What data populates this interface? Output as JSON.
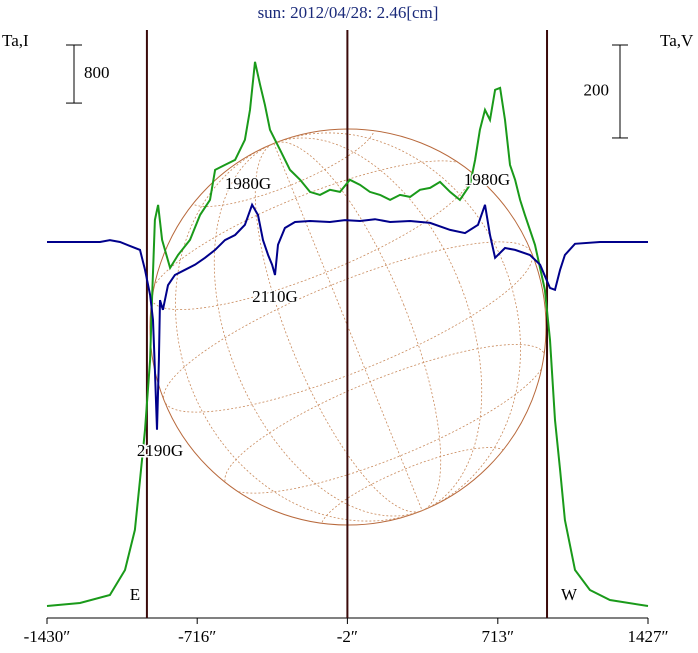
{
  "chart_data": {
    "type": "line",
    "title": "sun: 2012/04/28: 2.46[cm]",
    "ylabel": "Ta,I",
    "y2label": "Ta,V",
    "xlim": [
      -1430,
      1427
    ],
    "xticks": [
      {
        "value": -1430,
        "label": "-1430″"
      },
      {
        "value": -716,
        "label": "-716″"
      },
      {
        "value": -2,
        "label": "-2″"
      },
      {
        "value": 713,
        "label": "713″"
      },
      {
        "value": 1427,
        "label": "1427″"
      }
    ],
    "ylim": [
      0,
      8100
    ],
    "y2lim": [
      -809,
      456
    ],
    "y_scale_bar": 800,
    "y2_scale_bar": 200,
    "vlines": [
      -955,
      -2,
      947
    ],
    "limb_labels": [
      "E",
      "W"
    ],
    "annotations": [
      "1980G",
      "1980G",
      "2110G",
      "2190G"
    ],
    "series": [
      {
        "name": "I",
        "color": "#1a9a1a",
        "x": [
          -1430,
          -1273,
          -1131,
          -1059,
          -1012,
          -988,
          -964,
          -940,
          -931,
          -917,
          -902,
          -883,
          -845,
          -807,
          -750,
          -702,
          -655,
          -631,
          -584,
          -536,
          -489,
          -465,
          -441,
          -417,
          -394,
          -370,
          -322,
          -275,
          -227,
          -180,
          -132,
          -85,
          -37,
          10,
          58,
          105,
          153,
          201,
          248,
          296,
          343,
          391,
          438,
          486,
          533,
          581,
          605,
          628,
          652,
          676,
          700,
          724,
          747,
          771,
          795,
          819,
          842,
          890,
          937,
          961,
          985,
          1009,
          1032,
          1080,
          1151,
          1246,
          1427
        ],
        "values": [
          165,
          207,
          317,
          661,
          1213,
          1902,
          2591,
          3555,
          4382,
          5484,
          5691,
          5209,
          4823,
          5002,
          5209,
          5553,
          5760,
          6173,
          6242,
          6311,
          6587,
          7000,
          7662,
          7345,
          7069,
          6725,
          6449,
          6173,
          6036,
          5870,
          5829,
          5898,
          5870,
          6036,
          5967,
          5870,
          5829,
          5760,
          5829,
          5801,
          5898,
          5925,
          6008,
          5870,
          5760,
          5967,
          6311,
          6725,
          7000,
          6862,
          7276,
          7303,
          6862,
          6242,
          6036,
          5760,
          5553,
          5140,
          4520,
          3831,
          2728,
          2039,
          1350,
          661,
          386,
          248,
          165
        ]
      },
      {
        "name": "V",
        "color": "#00008b",
        "axis": "y2",
        "x": [
          -1430,
          -1178,
          -1131,
          -1083,
          -988,
          -964,
          -940,
          -926,
          -917,
          -907,
          -898,
          -893,
          -879,
          -855,
          -822,
          -774,
          -726,
          -679,
          -631,
          -584,
          -536,
          -489,
          -455,
          -427,
          -403,
          -379,
          -360,
          -346,
          -332,
          -299,
          -251,
          -180,
          -85,
          -14,
          58,
          129,
          201,
          296,
          391,
          486,
          557,
          619,
          652,
          676,
          700,
          747,
          795,
          866,
          914,
          961,
          985,
          1009,
          1032,
          1080,
          1199,
          1427
        ],
        "values": [
          0,
          0,
          4,
          0,
          -17,
          -60,
          -114,
          -168,
          -275,
          -404,
          -254,
          -125,
          -146,
          -93,
          -71,
          -60,
          -49,
          -34,
          -17,
          4,
          15,
          37,
          80,
          58,
          4,
          -28,
          -49,
          -71,
          -6,
          30,
          43,
          45,
          43,
          47,
          45,
          49,
          43,
          45,
          41,
          26,
          19,
          37,
          80,
          15,
          -34,
          -13,
          -17,
          -28,
          -49,
          -99,
          -103,
          -60,
          -28,
          -4,
          0,
          0
        ]
      }
    ]
  }
}
